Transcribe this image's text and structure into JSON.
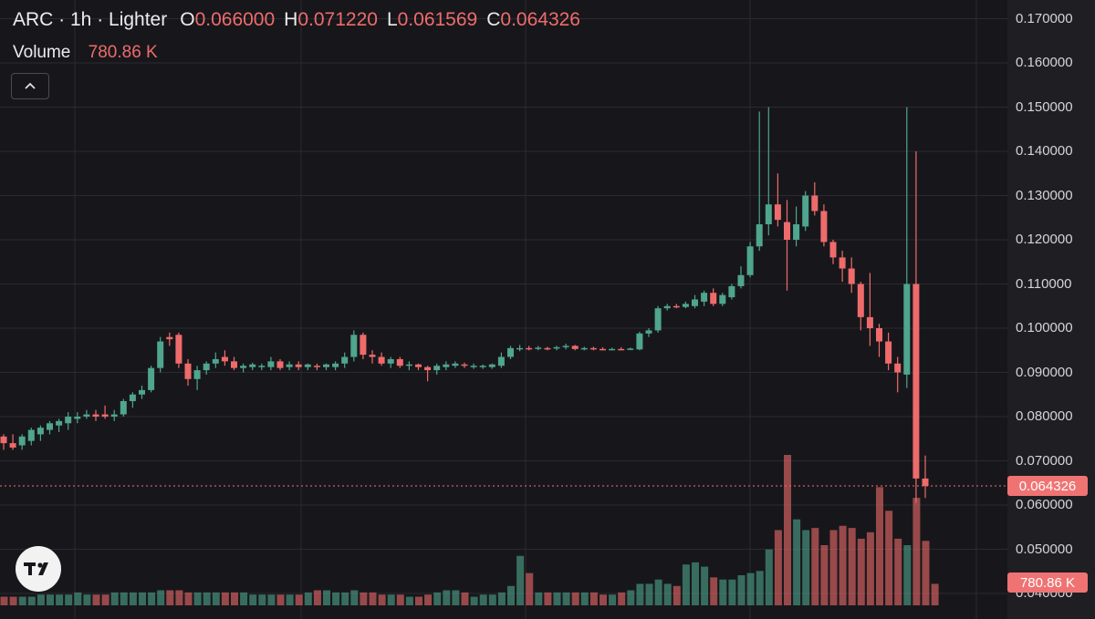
{
  "legend": {
    "symbol": "ARC · 1h · Lighter",
    "open_label": "O",
    "open": "0.066000",
    "high_label": "H",
    "high": "0.071220",
    "low_label": "L",
    "low": "0.061569",
    "close_label": "C",
    "close": "0.064326"
  },
  "volume": {
    "label": "Volume",
    "value": "780.86 K"
  },
  "price_axis": {
    "ticks": [
      "0.170000",
      "0.160000",
      "0.150000",
      "0.140000",
      "0.130000",
      "0.120000",
      "0.110000",
      "0.100000",
      "0.090000",
      "0.080000",
      "0.070000",
      "0.060000",
      "0.050000",
      "0.040000"
    ],
    "last_price_badge": "0.064326",
    "volume_badge": "780.86 K"
  },
  "icons": {
    "collapse": "chevron-up-icon",
    "logo": "tradingview-logo-icon"
  },
  "colors": {
    "up": "#4fa58e",
    "down": "#ef6b6b",
    "background": "#17171b",
    "grid": "#2a2a30"
  },
  "chart_data": {
    "type": "candlestick",
    "title": "ARC · 1h · Lighter",
    "ylim": [
      0.036,
      0.172
    ],
    "grid": true,
    "last_price": 0.064326,
    "ohlc": [
      [
        0.0755,
        0.076,
        0.0725,
        0.074
      ],
      [
        0.074,
        0.076,
        0.0725,
        0.073
      ],
      [
        0.0735,
        0.076,
        0.0725,
        0.0755
      ],
      [
        0.0745,
        0.0775,
        0.0735,
        0.077
      ],
      [
        0.076,
        0.078,
        0.0745,
        0.0775
      ],
      [
        0.077,
        0.079,
        0.076,
        0.0785
      ],
      [
        0.078,
        0.0795,
        0.0765,
        0.079
      ],
      [
        0.0785,
        0.081,
        0.077,
        0.08
      ],
      [
        0.0795,
        0.081,
        0.0785,
        0.08
      ],
      [
        0.08,
        0.0815,
        0.0795,
        0.0805
      ],
      [
        0.0805,
        0.0815,
        0.079,
        0.08
      ],
      [
        0.0805,
        0.0825,
        0.0795,
        0.08
      ],
      [
        0.08,
        0.0815,
        0.079,
        0.0805
      ],
      [
        0.0805,
        0.084,
        0.08,
        0.0835
      ],
      [
        0.0835,
        0.0855,
        0.082,
        0.085
      ],
      [
        0.085,
        0.087,
        0.084,
        0.086
      ],
      [
        0.086,
        0.0915,
        0.0855,
        0.091
      ],
      [
        0.091,
        0.098,
        0.09,
        0.097
      ],
      [
        0.098,
        0.099,
        0.096,
        0.0975
      ],
      [
        0.0985,
        0.099,
        0.091,
        0.092
      ],
      [
        0.092,
        0.093,
        0.087,
        0.0885
      ],
      [
        0.0885,
        0.0915,
        0.086,
        0.0905
      ],
      [
        0.0905,
        0.0925,
        0.0895,
        0.092
      ],
      [
        0.092,
        0.0945,
        0.091,
        0.093
      ],
      [
        0.0935,
        0.095,
        0.0915,
        0.0925
      ],
      [
        0.0925,
        0.0935,
        0.0905,
        0.091
      ],
      [
        0.091,
        0.092,
        0.09,
        0.0915
      ],
      [
        0.0912,
        0.0922,
        0.0905,
        0.0918
      ],
      [
        0.0912,
        0.092,
        0.0905,
        0.0915
      ],
      [
        0.0912,
        0.0935,
        0.0905,
        0.0925
      ],
      [
        0.0925,
        0.093,
        0.0905,
        0.091
      ],
      [
        0.0912,
        0.0925,
        0.0905,
        0.0918
      ],
      [
        0.0918,
        0.0925,
        0.0905,
        0.0912
      ],
      [
        0.0912,
        0.092,
        0.0905,
        0.0918
      ],
      [
        0.0915,
        0.092,
        0.0905,
        0.0912
      ],
      [
        0.0912,
        0.092,
        0.0905,
        0.0918
      ],
      [
        0.0912,
        0.0925,
        0.0905,
        0.092
      ],
      [
        0.092,
        0.0945,
        0.091,
        0.0935
      ],
      [
        0.0935,
        0.0995,
        0.0925,
        0.0985
      ],
      [
        0.0985,
        0.099,
        0.093,
        0.094
      ],
      [
        0.094,
        0.095,
        0.092,
        0.0935
      ],
      [
        0.0935,
        0.0945,
        0.0915,
        0.092
      ],
      [
        0.092,
        0.0935,
        0.091,
        0.093
      ],
      [
        0.093,
        0.0935,
        0.091,
        0.0915
      ],
      [
        0.0915,
        0.0925,
        0.0905,
        0.0918
      ],
      [
        0.0918,
        0.092,
        0.0905,
        0.0912
      ],
      [
        0.0912,
        0.0915,
        0.088,
        0.0905
      ],
      [
        0.0905,
        0.092,
        0.0895,
        0.0915
      ],
      [
        0.0912,
        0.0925,
        0.0905,
        0.0918
      ],
      [
        0.0915,
        0.0925,
        0.091,
        0.092
      ],
      [
        0.0918,
        0.0922,
        0.091,
        0.0915
      ],
      [
        0.0912,
        0.092,
        0.0908,
        0.0915
      ],
      [
        0.0912,
        0.0918,
        0.0908,
        0.0915
      ],
      [
        0.0912,
        0.092,
        0.0908,
        0.0918
      ],
      [
        0.0915,
        0.0945,
        0.091,
        0.0935
      ],
      [
        0.0935,
        0.096,
        0.093,
        0.0955
      ],
      [
        0.0952,
        0.0962,
        0.0948,
        0.0955
      ],
      [
        0.0955,
        0.096,
        0.095,
        0.0953
      ],
      [
        0.0953,
        0.096,
        0.095,
        0.0956
      ],
      [
        0.0955,
        0.0958,
        0.095,
        0.0954
      ],
      [
        0.0954,
        0.096,
        0.095,
        0.0957
      ],
      [
        0.0957,
        0.0965,
        0.0952,
        0.096
      ],
      [
        0.096,
        0.0962,
        0.095,
        0.0953
      ],
      [
        0.0953,
        0.0958,
        0.095,
        0.0955
      ],
      [
        0.0955,
        0.0958,
        0.095,
        0.0953
      ],
      [
        0.0953,
        0.0957,
        0.095,
        0.0952
      ],
      [
        0.0952,
        0.0956,
        0.095,
        0.0953
      ],
      [
        0.0953,
        0.0957,
        0.095,
        0.0952
      ],
      [
        0.0952,
        0.0956,
        0.095,
        0.0954
      ],
      [
        0.0952,
        0.0992,
        0.095,
        0.0988
      ],
      [
        0.0988,
        0.1,
        0.098,
        0.0995
      ],
      [
        0.0995,
        0.105,
        0.099,
        0.1045
      ],
      [
        0.1045,
        0.1055,
        0.104,
        0.105
      ],
      [
        0.105,
        0.1055,
        0.1045,
        0.1048
      ],
      [
        0.1048,
        0.106,
        0.1045,
        0.1055
      ],
      [
        0.105,
        0.1075,
        0.1045,
        0.1065
      ],
      [
        0.106,
        0.1085,
        0.105,
        0.108
      ],
      [
        0.108,
        0.109,
        0.105,
        0.1055
      ],
      [
        0.1055,
        0.108,
        0.105,
        0.1075
      ],
      [
        0.107,
        0.11,
        0.1065,
        0.1095
      ],
      [
        0.1095,
        0.114,
        0.109,
        0.112
      ],
      [
        0.112,
        0.1195,
        0.1115,
        0.1185
      ],
      [
        0.1185,
        0.149,
        0.1175,
        0.1235
      ],
      [
        0.1235,
        0.15,
        0.121,
        0.128
      ],
      [
        0.128,
        0.135,
        0.123,
        0.1245
      ],
      [
        0.124,
        0.129,
        0.1085,
        0.12
      ],
      [
        0.12,
        0.1275,
        0.1185,
        0.1235
      ],
      [
        0.123,
        0.131,
        0.122,
        0.13
      ],
      [
        0.13,
        0.133,
        0.1255,
        0.1265
      ],
      [
        0.1265,
        0.128,
        0.1185,
        0.1195
      ],
      [
        0.1195,
        0.12,
        0.1145,
        0.116
      ],
      [
        0.116,
        0.1175,
        0.1105,
        0.1135
      ],
      [
        0.1135,
        0.116,
        0.108,
        0.11
      ],
      [
        0.11,
        0.1105,
        0.0995,
        0.1025
      ],
      [
        0.1025,
        0.1125,
        0.096,
        0.1
      ],
      [
        0.1,
        0.101,
        0.0935,
        0.097
      ],
      [
        0.097,
        0.099,
        0.0905,
        0.092
      ],
      [
        0.092,
        0.0935,
        0.0855,
        0.09
      ],
      [
        0.0895,
        0.15,
        0.0865,
        0.11
      ],
      [
        0.11,
        0.14,
        0.0605,
        0.066
      ],
      [
        0.066,
        0.0712,
        0.0616,
        0.0643
      ]
    ],
    "volume": [
      4,
      4,
      4,
      4,
      5,
      5,
      5,
      5,
      6,
      5,
      5,
      5,
      6,
      6,
      6,
      6,
      6,
      7,
      7,
      7,
      6,
      6,
      6,
      6,
      6,
      6,
      6,
      5,
      5,
      5,
      5,
      5,
      5,
      6,
      7,
      7,
      6,
      6,
      7,
      6,
      6,
      5,
      5,
      5,
      4,
      4,
      5,
      6,
      7,
      7,
      6,
      4,
      5,
      5,
      6,
      9,
      23,
      15,
      6,
      6,
      6,
      6,
      6,
      6,
      6,
      5,
      5,
      6,
      7,
      10,
      10,
      12,
      10,
      9,
      19,
      20,
      18,
      13,
      12,
      12,
      14,
      15,
      16,
      26,
      35,
      70,
      40,
      35,
      36,
      28,
      35,
      37,
      36,
      31,
      34,
      55,
      44,
      31,
      28,
      50,
      30,
      10
    ]
  }
}
